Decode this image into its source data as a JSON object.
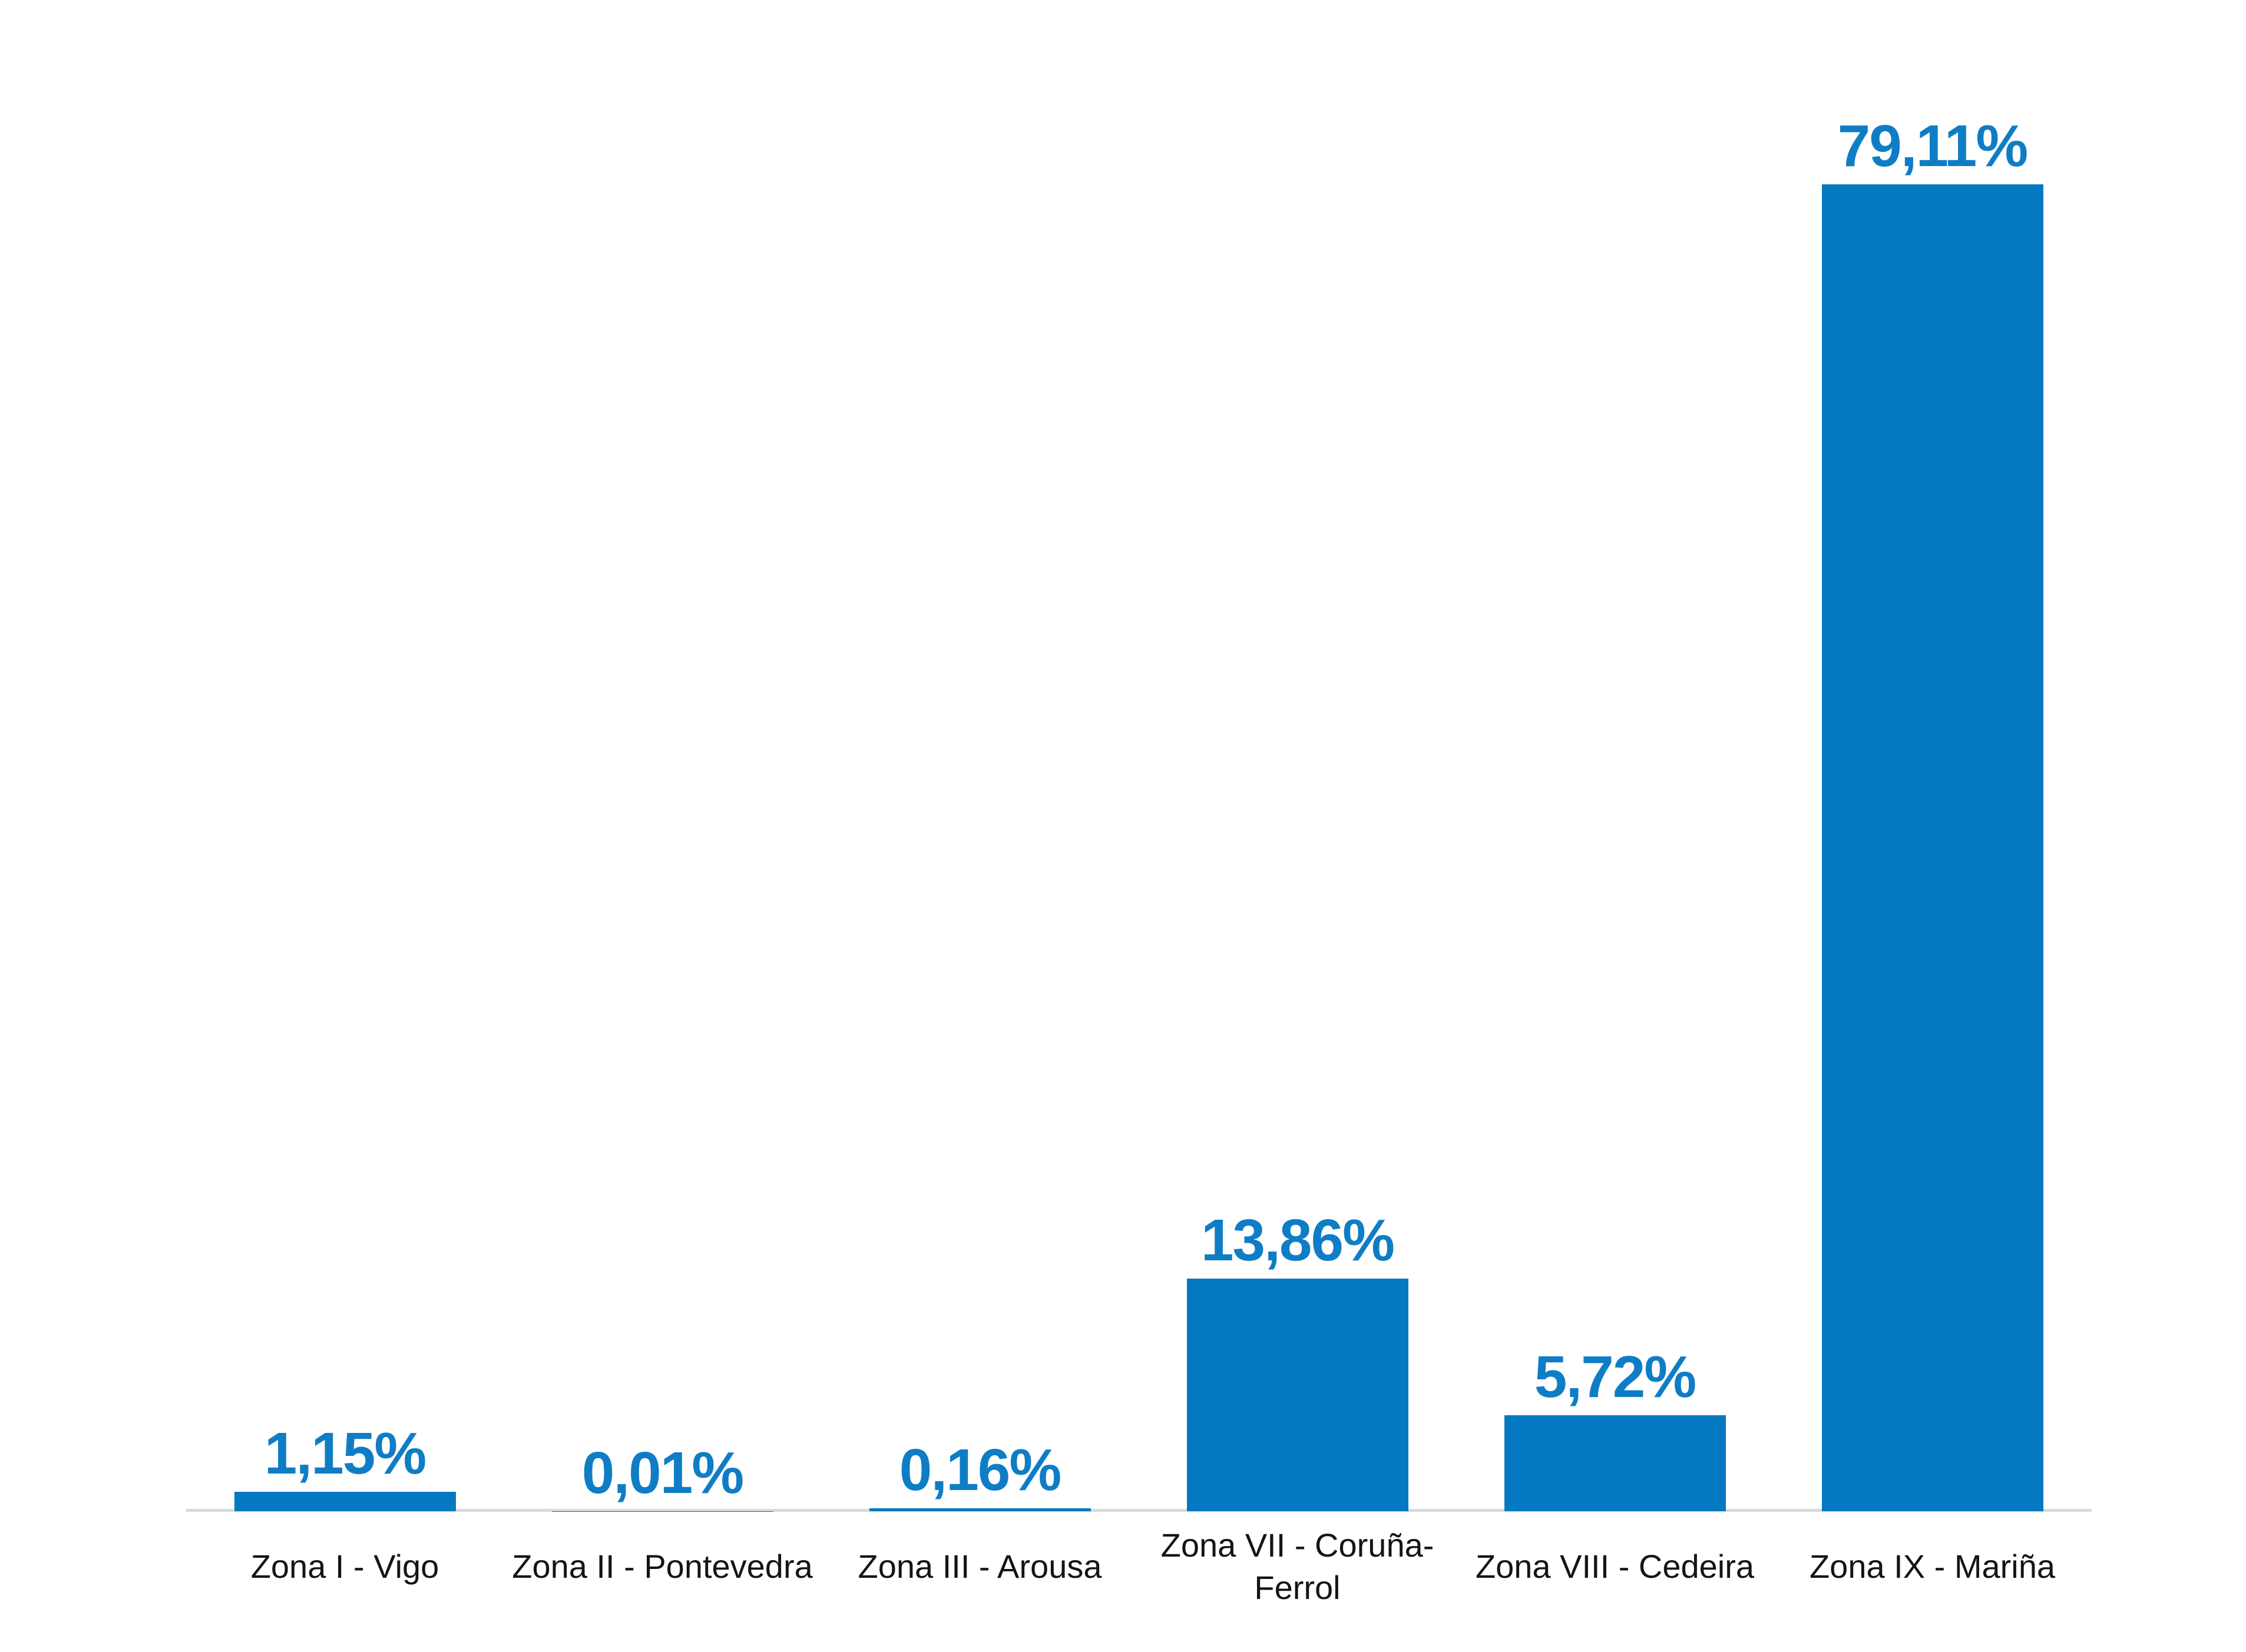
{
  "chart_data": {
    "type": "bar",
    "categories": [
      "Zona I - Vigo",
      "Zona II - Pontevedra",
      "Zona III - Arousa",
      "Zona VII - Coruña-Ferrol",
      "Zona VIII - Cedeira",
      "Zona IX - Mariña"
    ],
    "values": [
      1.15,
      0.01,
      0.16,
      13.86,
      5.72,
      79.11
    ],
    "value_labels": [
      "1,15%",
      "0,01%",
      "0,16%",
      "13,86%",
      "5,72%",
      "79,11%"
    ],
    "title": "",
    "xlabel": "",
    "ylabel": "",
    "ylim": [
      0,
      85
    ],
    "grid": false,
    "legend": false,
    "colors": {
      "bar": "#0578C2",
      "value_label": "#0F7DC5",
      "category_label": "#141414",
      "axis_line": "#D9D9D9",
      "background": "#FFFFFF"
    }
  }
}
